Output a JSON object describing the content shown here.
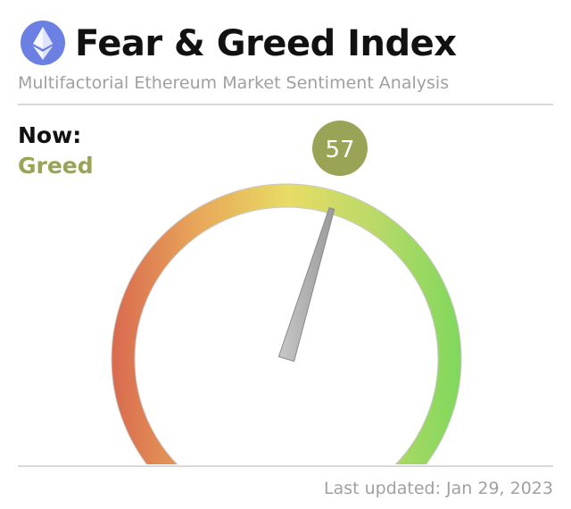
{
  "header": {
    "icon": "ethereum-icon",
    "title": "Fear & Greed Index",
    "subtitle": "Multifactorial Ethereum Market Sentiment Analysis"
  },
  "now": {
    "label": "Now:",
    "classification": "Greed",
    "value": "57",
    "color": "#9aa356"
  },
  "gauge": {
    "min": 0,
    "max": 100,
    "value": 57,
    "colors": [
      "#d9694f",
      "#e8a85a",
      "#e8dc64",
      "#b9d968",
      "#7ed85c"
    ]
  },
  "footer": {
    "last_updated": "Last updated: Jan 29, 2023"
  }
}
